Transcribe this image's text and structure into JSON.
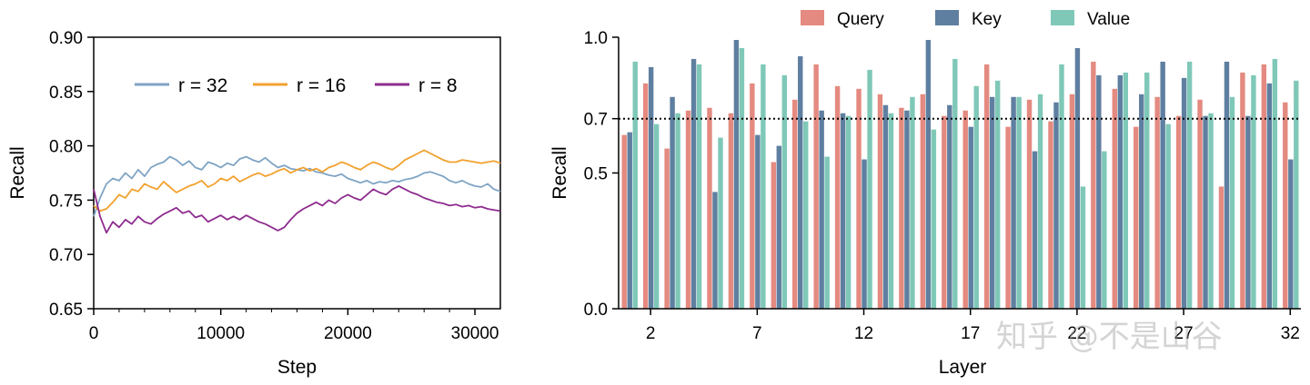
{
  "chart_data": [
    {
      "type": "line",
      "xlabel": "Step",
      "ylabel": "Recall",
      "xlim": [
        0,
        32000
      ],
      "ylim": [
        0.65,
        0.9
      ],
      "xticks": [
        0,
        10000,
        20000,
        30000
      ],
      "xtick_labels": [
        "0",
        "10000",
        "20000",
        "30000"
      ],
      "yticks": [
        0.65,
        0.7,
        0.75,
        0.8,
        0.85,
        0.9
      ],
      "ytick_labels": [
        "0.65",
        "0.70",
        "0.75",
        "0.80",
        "0.85",
        "0.90"
      ],
      "legend_position": "top",
      "series": [
        {
          "name": "r = 32",
          "color": "#7fa4c4",
          "x": [
            0,
            500,
            1000,
            1500,
            2000,
            2500,
            3000,
            3500,
            4000,
            4500,
            5000,
            5500,
            6000,
            6500,
            7000,
            7500,
            8000,
            8500,
            9000,
            9500,
            10000,
            10500,
            11000,
            11500,
            12000,
            12500,
            13000,
            13500,
            14000,
            14500,
            15000,
            15500,
            16000,
            16500,
            17000,
            17500,
            18000,
            18500,
            19000,
            19500,
            20000,
            20500,
            21000,
            21500,
            22000,
            22500,
            23000,
            23500,
            24000,
            24500,
            25000,
            25500,
            26000,
            26500,
            27000,
            27500,
            28000,
            28500,
            29000,
            29500,
            30000,
            30500,
            31000,
            31500,
            32000
          ],
          "y": [
            0.735,
            0.752,
            0.765,
            0.77,
            0.768,
            0.775,
            0.77,
            0.778,
            0.772,
            0.78,
            0.783,
            0.785,
            0.79,
            0.787,
            0.782,
            0.786,
            0.78,
            0.778,
            0.785,
            0.783,
            0.78,
            0.784,
            0.782,
            0.788,
            0.79,
            0.787,
            0.785,
            0.789,
            0.784,
            0.78,
            0.782,
            0.779,
            0.778,
            0.777,
            0.779,
            0.776,
            0.775,
            0.773,
            0.772,
            0.774,
            0.77,
            0.768,
            0.766,
            0.768,
            0.765,
            0.767,
            0.766,
            0.768,
            0.767,
            0.769,
            0.77,
            0.772,
            0.775,
            0.776,
            0.774,
            0.772,
            0.768,
            0.766,
            0.768,
            0.765,
            0.763,
            0.762,
            0.765,
            0.76,
            0.758
          ]
        },
        {
          "name": "r = 16",
          "color": "#f2a12e",
          "x": [
            0,
            500,
            1000,
            1500,
            2000,
            2500,
            3000,
            3500,
            4000,
            4500,
            5000,
            5500,
            6000,
            6500,
            7000,
            7500,
            8000,
            8500,
            9000,
            9500,
            10000,
            10500,
            11000,
            11500,
            12000,
            12500,
            13000,
            13500,
            14000,
            14500,
            15000,
            15500,
            16000,
            16500,
            17000,
            17500,
            18000,
            18500,
            19000,
            19500,
            20000,
            20500,
            21000,
            21500,
            22000,
            22500,
            23000,
            23500,
            24000,
            24500,
            25000,
            25500,
            26000,
            26500,
            27000,
            27500,
            28000,
            28500,
            29000,
            29500,
            30000,
            30500,
            31000,
            31500,
            32000
          ],
          "y": [
            0.745,
            0.74,
            0.742,
            0.748,
            0.755,
            0.752,
            0.76,
            0.758,
            0.765,
            0.762,
            0.76,
            0.767,
            0.762,
            0.757,
            0.76,
            0.763,
            0.765,
            0.768,
            0.762,
            0.765,
            0.77,
            0.768,
            0.772,
            0.767,
            0.77,
            0.773,
            0.775,
            0.772,
            0.774,
            0.777,
            0.779,
            0.775,
            0.778,
            0.78,
            0.777,
            0.779,
            0.776,
            0.78,
            0.782,
            0.785,
            0.783,
            0.78,
            0.778,
            0.782,
            0.785,
            0.783,
            0.78,
            0.778,
            0.782,
            0.787,
            0.79,
            0.793,
            0.796,
            0.793,
            0.79,
            0.787,
            0.785,
            0.785,
            0.787,
            0.786,
            0.785,
            0.784,
            0.785,
            0.786,
            0.784
          ]
        },
        {
          "name": "r = 8",
          "color": "#8e2c8e",
          "x": [
            0,
            500,
            1000,
            1500,
            2000,
            2500,
            3000,
            3500,
            4000,
            4500,
            5000,
            5500,
            6000,
            6500,
            7000,
            7500,
            8000,
            8500,
            9000,
            9500,
            10000,
            10500,
            11000,
            11500,
            12000,
            12500,
            13000,
            13500,
            14000,
            14500,
            15000,
            15500,
            16000,
            16500,
            17000,
            17500,
            18000,
            18500,
            19000,
            19500,
            20000,
            20500,
            21000,
            21500,
            22000,
            22500,
            23000,
            23500,
            24000,
            24500,
            25000,
            25500,
            26000,
            26500,
            27000,
            27500,
            28000,
            28500,
            29000,
            29500,
            30000,
            30500,
            31000,
            31500,
            32000
          ],
          "y": [
            0.76,
            0.735,
            0.72,
            0.73,
            0.725,
            0.732,
            0.728,
            0.735,
            0.73,
            0.728,
            0.733,
            0.737,
            0.74,
            0.743,
            0.738,
            0.74,
            0.734,
            0.736,
            0.73,
            0.733,
            0.736,
            0.732,
            0.735,
            0.732,
            0.736,
            0.733,
            0.73,
            0.728,
            0.725,
            0.722,
            0.725,
            0.732,
            0.738,
            0.742,
            0.745,
            0.748,
            0.745,
            0.75,
            0.747,
            0.752,
            0.755,
            0.752,
            0.75,
            0.755,
            0.76,
            0.757,
            0.755,
            0.76,
            0.763,
            0.76,
            0.757,
            0.755,
            0.752,
            0.75,
            0.748,
            0.747,
            0.745,
            0.746,
            0.744,
            0.745,
            0.743,
            0.744,
            0.742,
            0.741,
            0.74
          ]
        }
      ]
    },
    {
      "type": "bar",
      "xlabel": "Layer",
      "ylabel": "Recall",
      "ylim": [
        0.0,
        1.0
      ],
      "yticks": [
        0.0,
        0.5,
        0.7,
        1.0
      ],
      "ytick_labels": [
        "0.0",
        "0.5",
        "0.7",
        "1.0"
      ],
      "xticks": [
        2,
        7,
        12,
        17,
        22,
        27,
        32
      ],
      "xtick_labels": [
        "2",
        "7",
        "12",
        "17",
        "22",
        "27",
        "32"
      ],
      "reference_line": 0.7,
      "legend_position": "top",
      "categories": [
        1,
        2,
        3,
        4,
        5,
        6,
        7,
        8,
        9,
        10,
        11,
        12,
        13,
        14,
        15,
        16,
        17,
        18,
        19,
        20,
        21,
        22,
        23,
        24,
        25,
        26,
        27,
        28,
        29,
        30,
        31,
        32
      ],
      "series": [
        {
          "name": "Query",
          "color": "#e48a80",
          "values": [
            0.64,
            0.83,
            0.59,
            0.73,
            0.74,
            0.72,
            0.83,
            0.54,
            0.77,
            0.9,
            0.82,
            0.81,
            0.79,
            0.74,
            0.79,
            0.71,
            0.73,
            0.9,
            0.67,
            0.77,
            0.69,
            0.79,
            0.91,
            0.81,
            0.67,
            0.78,
            0.71,
            0.77,
            0.45,
            0.87,
            0.9,
            0.76
          ]
        },
        {
          "name": "Key",
          "color": "#5f7fa0",
          "values": [
            0.65,
            0.89,
            0.78,
            0.92,
            0.43,
            0.99,
            0.64,
            0.6,
            0.93,
            0.73,
            0.72,
            0.55,
            0.75,
            0.73,
            0.99,
            0.75,
            0.67,
            0.78,
            0.78,
            0.58,
            0.76,
            0.96,
            0.86,
            0.86,
            0.79,
            0.91,
            0.85,
            0.71,
            0.91,
            0.71,
            0.83,
            0.55
          ]
        },
        {
          "name": "Value",
          "color": "#7fc8b8",
          "values": [
            0.91,
            0.68,
            0.72,
            0.9,
            0.63,
            0.96,
            0.9,
            0.86,
            0.69,
            0.56,
            0.71,
            0.88,
            0.72,
            0.78,
            0.66,
            0.92,
            0.82,
            0.84,
            0.78,
            0.79,
            0.9,
            0.45,
            0.58,
            0.87,
            0.87,
            0.68,
            0.91,
            0.72,
            0.78,
            0.86,
            0.92,
            0.84
          ]
        }
      ]
    }
  ],
  "watermark": "知乎 @不是山谷"
}
